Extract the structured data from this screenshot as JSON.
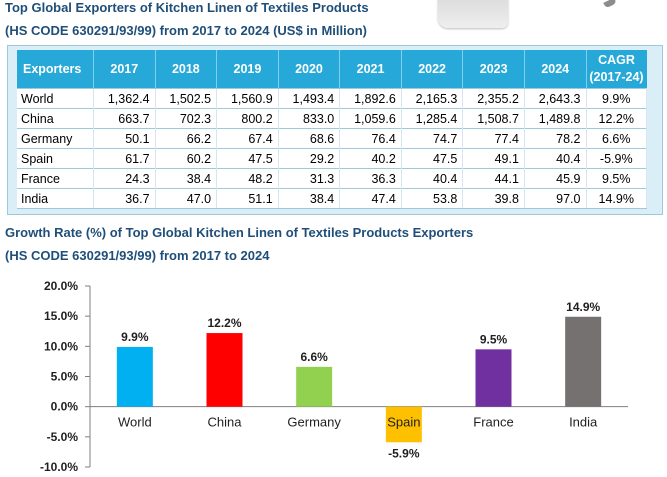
{
  "header": {
    "title_line1": "Top Global Exporters of Kitchen Linen of Textiles Products",
    "title_line2": "(HS CODE 630291/93/99) from 2017 to 2024 (US$ in Million)"
  },
  "table": {
    "header_label": "Exporters",
    "years": [
      "2017",
      "2018",
      "2019",
      "2020",
      "2021",
      "2022",
      "2023",
      "2024"
    ],
    "cagr_label_line1": "CAGR",
    "cagr_label_line2": "(2017-24)",
    "rows": [
      {
        "name": "World",
        "values": [
          "1,362.4",
          "1,502.5",
          "1,560.9",
          "1,493.4",
          "1,892.6",
          "2,165.3",
          "2,355.2",
          "2,643.3"
        ],
        "cagr": "9.9%"
      },
      {
        "name": "China",
        "values": [
          "663.7",
          "702.3",
          "800.2",
          "833.0",
          "1,059.6",
          "1,285.4",
          "1,508.7",
          "1,489.8"
        ],
        "cagr": "12.2%"
      },
      {
        "name": "Germany",
        "values": [
          "50.1",
          "66.2",
          "67.4",
          "68.6",
          "76.4",
          "74.7",
          "77.4",
          "78.2"
        ],
        "cagr": "6.6%"
      },
      {
        "name": "Spain",
        "values": [
          "61.7",
          "60.2",
          "47.5",
          "29.2",
          "40.2",
          "47.5",
          "49.1",
          "40.4"
        ],
        "cagr": "-5.9%"
      },
      {
        "name": "France",
        "values": [
          "24.3",
          "38.4",
          "48.2",
          "31.3",
          "36.3",
          "40.4",
          "44.1",
          "45.9"
        ],
        "cagr": "9.5%"
      },
      {
        "name": "India",
        "values": [
          "36.7",
          "47.0",
          "51.1",
          "38.4",
          "47.4",
          "53.8",
          "39.8",
          "97.0"
        ],
        "cagr": "14.9%"
      }
    ]
  },
  "chart_title_line1": "Growth Rate (%) of Top Global Kitchen Linen of Textiles Products Exporters",
  "chart_title_line2": "(HS CODE 630291/93/99) from 2017 to 2024",
  "chart_data": {
    "type": "bar",
    "title": "Growth Rate (%) of Top Global Kitchen Linen of Textiles Products Exporters",
    "categories": [
      "World",
      "China",
      "Germany",
      "Spain",
      "France",
      "India"
    ],
    "values": [
      9.9,
      12.2,
      6.6,
      -5.9,
      9.5,
      14.9
    ],
    "data_labels": [
      "9.9%",
      "12.2%",
      "6.6%",
      "-5.9%",
      "9.5%",
      "14.9%"
    ],
    "colors": [
      "#00b0f0",
      "#ff0000",
      "#92d050",
      "#ffc000",
      "#7030a0",
      "#767171"
    ],
    "ylim": [
      -10,
      20
    ],
    "yticks": [
      20,
      15,
      10,
      5,
      0,
      -5,
      -10
    ],
    "ytick_labels": [
      "20.0%",
      "15.0%",
      "10.0%",
      "5.0%",
      "0.0%",
      "-5.0%",
      "-10.0%"
    ],
    "xlabel": "",
    "ylabel": "",
    "grid": false
  },
  "colors": {
    "title": "#1f4e79",
    "table_header": "#26a8d8",
    "table_frame": "#d9eef6"
  },
  "icons": {
    "decoration": "kitchen-towel-image"
  }
}
